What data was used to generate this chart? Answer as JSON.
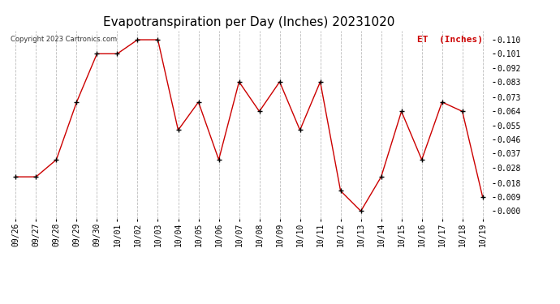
{
  "title": "Evapotranspiration per Day (Inches) 20231020",
  "copyright": "Copyright 2023 Cartronics.com",
  "legend_label": "ET  (Inches)",
  "x_labels": [
    "09/26",
    "09/27",
    "09/28",
    "09/29",
    "09/30",
    "10/01",
    "10/02",
    "10/03",
    "10/04",
    "10/05",
    "10/06",
    "10/07",
    "10/08",
    "10/09",
    "10/10",
    "10/11",
    "10/12",
    "10/13",
    "10/14",
    "10/15",
    "10/16",
    "10/17",
    "10/18",
    "10/19"
  ],
  "y_values": [
    0.022,
    0.022,
    0.033,
    0.07,
    0.101,
    0.101,
    0.11,
    0.11,
    0.052,
    0.07,
    0.033,
    0.083,
    0.064,
    0.083,
    0.052,
    0.083,
    0.013,
    0.0,
    0.022,
    0.064,
    0.033,
    0.07,
    0.064,
    0.009
  ],
  "y_ticks": [
    0.0,
    0.009,
    0.018,
    0.028,
    0.037,
    0.046,
    0.055,
    0.064,
    0.073,
    0.083,
    0.092,
    0.101,
    0.11
  ],
  "line_color": "#cc0000",
  "marker_color": "#000000",
  "background_color": "#ffffff",
  "grid_color": "#bbbbbb",
  "title_fontsize": 11,
  "tick_fontsize": 7,
  "copyright_fontsize": 6,
  "legend_fontsize": 8,
  "ylim": [
    -0.005,
    0.116
  ]
}
